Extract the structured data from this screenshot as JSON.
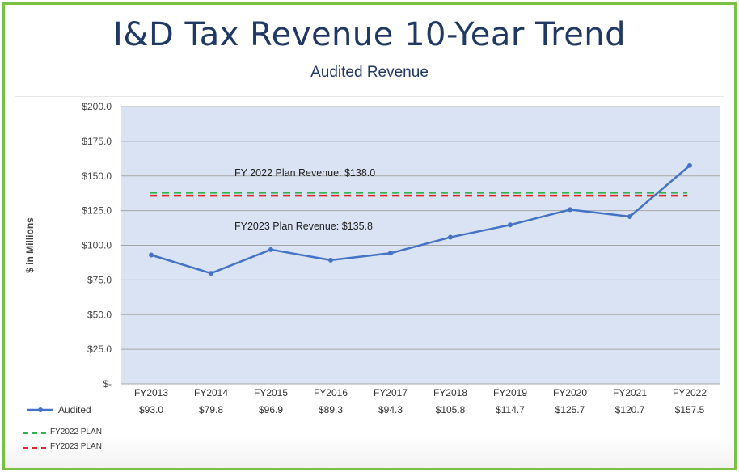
{
  "page": {
    "title": "I&D Tax Revenue 10-Year Trend",
    "subtitle": "Audited Revenue"
  },
  "colors": {
    "frame": "#7ac143",
    "plot_bg": "#dae3f3",
    "series": "#4472c4",
    "fy2022_plan": "#2fb34a",
    "fy2023_plan": "#e0282a",
    "title": "#1f3864"
  },
  "chart_data": {
    "type": "line",
    "title": "I&D Tax Revenue 10-Year Trend",
    "subtitle": "Audited Revenue",
    "ylabel": "$ in Millions",
    "xlabel": "",
    "ylim": [
      0,
      200
    ],
    "yticks": [
      0,
      25,
      50,
      75,
      100,
      125,
      150,
      175,
      200
    ],
    "ytick_labels": [
      "$-",
      "$25.0",
      "$50.0",
      "$75.0",
      "$100.0",
      "$125.0",
      "$150.0",
      "$175.0",
      "$200.0"
    ],
    "grid": true,
    "categories": [
      "FY2013",
      "FY2014",
      "FY2015",
      "FY2016",
      "FY2017",
      "FY2018",
      "FY2019",
      "FY2020",
      "FY2021",
      "FY2022"
    ],
    "series": [
      {
        "name": "Audited",
        "values": [
          93.0,
          79.8,
          96.9,
          89.3,
          94.3,
          105.8,
          114.7,
          125.7,
          120.7,
          157.5
        ],
        "value_labels": [
          "$93.0",
          "$79.8",
          "$96.9",
          "$89.3",
          "$94.3",
          "$105.8",
          "$114.7",
          "$125.7",
          "$120.7",
          "$157.5"
        ]
      }
    ],
    "reference_lines": [
      {
        "name": "FY2022 PLAN",
        "value": 138.0,
        "annotation": "FY 2022 Plan Revenue:  $138.0"
      },
      {
        "name": "FY2023 PLAN",
        "value": 135.8,
        "annotation": "FY2023 Plan Revenue: $135.8"
      }
    ],
    "legend": {
      "placement": "bottom-left",
      "entries": [
        "Audited",
        "FY2022 PLAN",
        "FY2023 PLAN"
      ]
    }
  }
}
